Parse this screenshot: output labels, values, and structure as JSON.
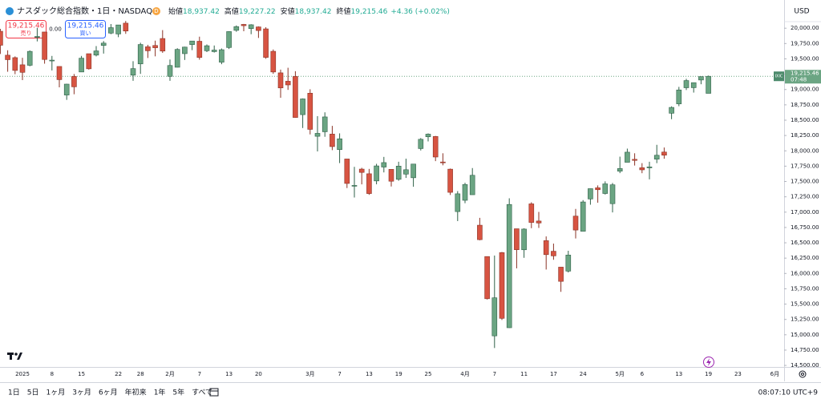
{
  "chart_data": {
    "type": "candlestick",
    "title": "ナスダック総合指数・1日・NASDAQ",
    "legend": [
      {
        "name": "始値",
        "label": "18,937.42"
      },
      {
        "name": "高値",
        "label": "19,227.22"
      },
      {
        "name": "安値",
        "label": "18,937.42"
      },
      {
        "name": "終値",
        "label": "19,215.46"
      }
    ],
    "change": "+4.36 (+0.02%)",
    "currency": "USD",
    "sell": {
      "price": "19,215.46",
      "label": "売り"
    },
    "spread": "0.00",
    "buy": {
      "price": "19,215.46",
      "label": "買い"
    },
    "symbol": "IXIC",
    "last_price": {
      "value": 19215.46,
      "label": "19,215.46"
    },
    "countdown": "07:48",
    "up_color": "#6ba583",
    "down_color": "#d75442",
    "grid": false,
    "ylim": [
      14475,
      20460
    ],
    "yticks": [
      {
        "value": 14500,
        "label": "14,500.00"
      },
      {
        "value": 14750,
        "label": "14,750.00"
      },
      {
        "value": 15000,
        "label": "15,000.00"
      },
      {
        "value": 15250,
        "label": "15,250.00"
      },
      {
        "value": 15500,
        "label": "15,500.00"
      },
      {
        "value": 15750,
        "label": "15,750.00"
      },
      {
        "value": 16000,
        "label": "16,000.00"
      },
      {
        "value": 16250,
        "label": "16,250.00"
      },
      {
        "value": 16500,
        "label": "16,500.00"
      },
      {
        "value": 16750,
        "label": "16,750.00"
      },
      {
        "value": 17000,
        "label": "17,000.00"
      },
      {
        "value": 17250,
        "label": "17,250.00"
      },
      {
        "value": 17500,
        "label": "17,500.00"
      },
      {
        "value": 17750,
        "label": "17,750.00"
      },
      {
        "value": 18000,
        "label": "18,000.00"
      },
      {
        "value": 18250,
        "label": "18,250.00"
      },
      {
        "value": 18500,
        "label": "18,500.00"
      },
      {
        "value": 18750,
        "label": "18,750.00"
      },
      {
        "value": 19000,
        "label": "19,000.00"
      },
      {
        "value": 19250,
        "label": "19,250.00"
      },
      {
        "value": 19500,
        "label": "19,500.00"
      },
      {
        "value": 19750,
        "label": "19,750.00"
      },
      {
        "value": 20000,
        "label": "20,000.00"
      }
    ],
    "categories": [
      null,
      null,
      null,
      "2025",
      null,
      null,
      null,
      "8",
      null,
      null,
      null,
      "15",
      null,
      null,
      null,
      null,
      "22",
      null,
      null,
      "28",
      null,
      null,
      null,
      "2月",
      null,
      null,
      null,
      "7",
      null,
      null,
      null,
      "13",
      null,
      null,
      null,
      "20",
      null,
      null,
      null,
      null,
      null,
      null,
      "3月",
      null,
      null,
      null,
      "7",
      null,
      null,
      null,
      "13",
      null,
      null,
      null,
      "19",
      null,
      null,
      null,
      "25",
      null,
      null,
      null,
      null,
      "4月",
      null,
      null,
      null,
      "7",
      null,
      null,
      null,
      "11",
      null,
      null,
      null,
      "17",
      null,
      null,
      null,
      "24",
      null,
      null,
      null,
      null,
      "5月",
      null,
      null,
      "6",
      null,
      null,
      null,
      null,
      "13",
      null,
      null,
      null,
      "19",
      null,
      null,
      null,
      "23",
      null,
      null,
      null,
      null,
      "6月"
    ],
    "ohlc": [
      [
        19950,
        19990,
        19580,
        19722
      ],
      [
        19560,
        19640,
        19290,
        19487
      ],
      [
        19520,
        19540,
        19250,
        19311
      ],
      [
        19403,
        19518,
        19153,
        19280
      ],
      [
        19395,
        19638,
        19379,
        19622
      ],
      [
        19851,
        20007,
        19785,
        19865
      ],
      [
        19938,
        19940,
        19421,
        19490
      ],
      [
        19470,
        19548,
        19311,
        19479
      ],
      [
        19376,
        19376,
        19036,
        19161
      ],
      [
        18910,
        19093,
        18831,
        19088
      ],
      [
        19213,
        19253,
        18923,
        19044
      ],
      [
        19286,
        19548,
        19286,
        19511
      ],
      [
        19584,
        19584,
        19325,
        19338
      ],
      [
        19561,
        19709,
        19540,
        19630
      ],
      [
        19719,
        19790,
        19586,
        19757
      ],
      [
        19920,
        20068,
        19903,
        20009
      ],
      [
        19906,
        20053,
        19854,
        20053
      ],
      [
        20082,
        20118,
        19908,
        19954
      ],
      [
        19234,
        19462,
        19142,
        19341
      ],
      [
        19418,
        19763,
        19255,
        19734
      ],
      [
        19697,
        19729,
        19514,
        19632
      ],
      [
        19718,
        19797,
        19541,
        19681
      ],
      [
        19832,
        19969,
        19598,
        19627
      ],
      [
        19215,
        19489,
        19141,
        19392
      ],
      [
        19363,
        19673,
        19360,
        19654
      ],
      [
        19585,
        19698,
        19482,
        19692
      ],
      [
        19733,
        19792,
        19642,
        19791
      ],
      [
        19787,
        19862,
        19487,
        19523
      ],
      [
        19632,
        19735,
        19611,
        19714
      ],
      [
        19618,
        19718,
        19603,
        19643
      ],
      [
        19446,
        19669,
        19413,
        19649
      ],
      [
        19685,
        19950,
        19661,
        19945
      ],
      [
        19965,
        20045,
        19942,
        20026
      ],
      [
        20062,
        20070,
        19951,
        20041
      ],
      [
        19994,
        20065,
        19902,
        20056
      ],
      [
        20021,
        20029,
        19841,
        19962
      ],
      [
        19989,
        20016,
        19501,
        19524
      ],
      [
        19623,
        19653,
        19256,
        19286
      ],
      [
        19272,
        19325,
        18865,
        19026
      ],
      [
        19135,
        19355,
        18994,
        19075
      ],
      [
        19213,
        19299,
        18540,
        18544
      ],
      [
        18590,
        18855,
        18372,
        18847
      ],
      [
        18940,
        19004,
        18268,
        18350
      ],
      [
        18237,
        18565,
        17991,
        18285
      ],
      [
        18311,
        18628,
        18229,
        18553
      ],
      [
        18273,
        18407,
        18011,
        18069
      ],
      [
        18020,
        18285,
        17800,
        18196
      ],
      [
        17867,
        17868,
        17393,
        17468
      ],
      [
        17434,
        17738,
        17238,
        17436
      ],
      [
        17702,
        17723,
        17453,
        17648
      ],
      [
        17626,
        17705,
        17282,
        17303
      ],
      [
        17509,
        17788,
        17454,
        17754
      ],
      [
        17735,
        17901,
        17648,
        17808
      ],
      [
        17698,
        17700,
        17418,
        17504
      ],
      [
        17535,
        17822,
        17512,
        17751
      ],
      [
        17620,
        17872,
        17558,
        17692
      ],
      [
        17561,
        17785,
        17414,
        17784
      ],
      [
        18037,
        18208,
        18006,
        18188
      ],
      [
        18229,
        18284,
        18153,
        18272
      ],
      [
        18234,
        18243,
        17832,
        17899
      ],
      [
        17818,
        17960,
        17764,
        17804
      ],
      [
        17701,
        17711,
        17280,
        17323
      ],
      [
        17009,
        17343,
        16854,
        17299
      ],
      [
        17193,
        17479,
        17146,
        17450
      ],
      [
        17284,
        17719,
        17284,
        17601
      ],
      [
        16787,
        16907,
        16541,
        16551
      ],
      [
        16276,
        16276,
        15575,
        15588
      ],
      [
        14982,
        16292,
        14784,
        15603
      ],
      [
        16340,
        16350,
        15241,
        15268
      ],
      [
        15115,
        17226,
        15110,
        17125
      ],
      [
        16729,
        16729,
        16083,
        16387
      ],
      [
        16386,
        16737,
        16255,
        16724
      ],
      [
        17135,
        17161,
        16738,
        16832
      ],
      [
        16855,
        17004,
        16743,
        16823
      ],
      [
        16535,
        16604,
        16064,
        16307
      ],
      [
        16362,
        16487,
        16223,
        16287
      ],
      [
        16103,
        16103,
        15700,
        15871
      ],
      [
        16038,
        16370,
        16016,
        16300
      ],
      [
        16935,
        17052,
        16571,
        16708
      ],
      [
        16688,
        17196,
        16688,
        17166
      ],
      [
        17215,
        17384,
        17121,
        17383
      ],
      [
        17397,
        17436,
        17154,
        17366
      ],
      [
        17304,
        17502,
        17287,
        17461
      ],
      [
        17138,
        17475,
        16996,
        17446
      ],
      [
        17668,
        17905,
        17636,
        17711
      ],
      [
        17813,
        18036,
        17813,
        17978
      ],
      [
        17861,
        17960,
        17760,
        17844
      ],
      [
        17724,
        17799,
        17635,
        17690
      ],
      [
        17723,
        17822,
        17534,
        17738
      ],
      [
        17864,
        18098,
        17799,
        17928
      ],
      [
        17980,
        18054,
        17871,
        17929
      ],
      [
        18613,
        18725,
        18516,
        18708
      ],
      [
        18766,
        19043,
        18728,
        18993
      ],
      [
        19029,
        19175,
        18991,
        19146
      ],
      [
        19030,
        19113,
        18950,
        19112
      ],
      [
        19155,
        19212,
        19086,
        19211
      ],
      [
        18937.42,
        19227.22,
        18937.42,
        19215.46
      ],
      null,
      null,
      null,
      null,
      null,
      null,
      null,
      null,
      null
    ],
    "ranges": [
      "1日",
      "5日",
      "1ヶ月",
      "3ヶ月",
      "6ヶ月",
      "年初来",
      "1年",
      "5年",
      "すべて"
    ],
    "clock": "08:07:10 UTC+9"
  }
}
